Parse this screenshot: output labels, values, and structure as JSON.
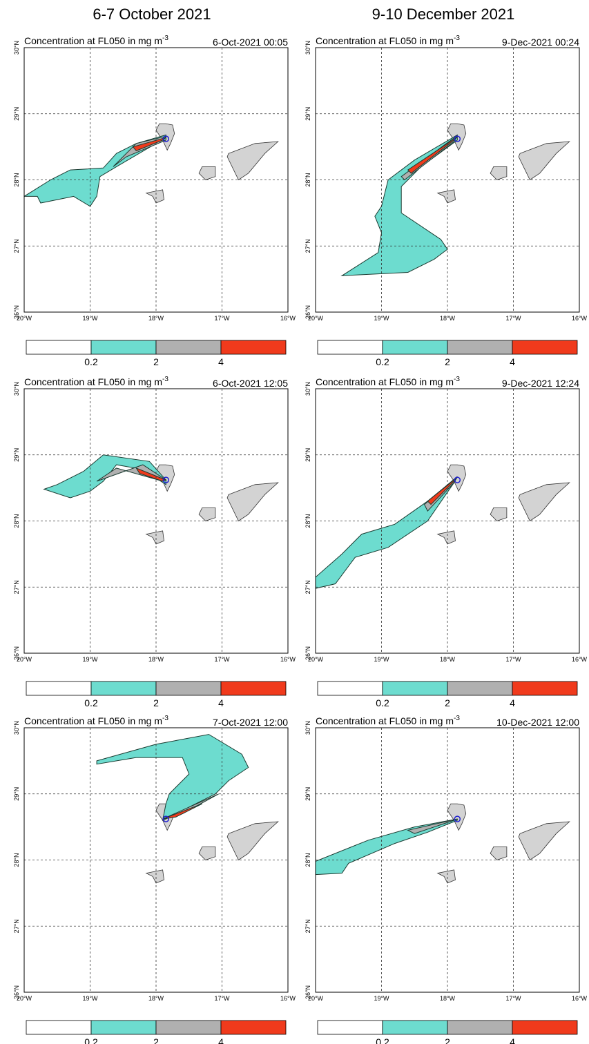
{
  "column_titles": [
    "6-7 October 2021",
    "9-10 December 2021"
  ],
  "panel_title": "Concentration at FL050 in mg m",
  "panel_title_unit": "-3",
  "panels": [
    {
      "timestamp": "6-Oct-2021 00:05"
    },
    {
      "timestamp": "9-Dec-2021 00:24"
    },
    {
      "timestamp": "6-Oct-2021 12:05"
    },
    {
      "timestamp": "9-Dec-2021 12:24"
    },
    {
      "timestamp": "7-Oct-2021 12:00"
    },
    {
      "timestamp": "10-Dec-2021 12:00"
    }
  ],
  "lon_labels": [
    "20°W",
    "19°W",
    "18°W",
    "17°W",
    "16°W"
  ],
  "lat_labels": [
    "26°N",
    "27°N",
    "28°N",
    "29°N",
    "30°N"
  ],
  "legend": {
    "labels": [
      "0.2",
      "2",
      "4"
    ],
    "colors": [
      "#ffffff",
      "#6ddccf",
      "#b0b0b0",
      "#f03a1c"
    ]
  },
  "land_color": "#d3d3d3"
}
